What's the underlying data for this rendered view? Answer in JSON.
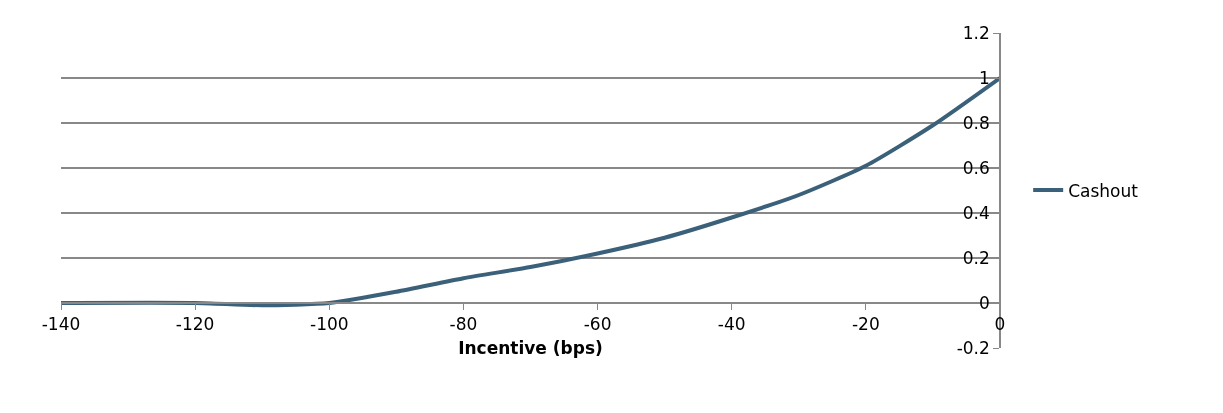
{
  "chart_data": {
    "type": "line",
    "xlabel": "Incentive (bps)",
    "x": [
      -140,
      -120,
      -110,
      -100,
      -90,
      -80,
      -70,
      -60,
      -50,
      -40,
      -30,
      -20,
      -10,
      0
    ],
    "series": [
      {
        "name": "Cashout",
        "color": "#3b6079",
        "values": [
          0,
          0,
          -0.01,
          0,
          0.05,
          0.11,
          0.16,
          0.22,
          0.29,
          0.38,
          0.48,
          0.61,
          0.79,
          1.0
        ]
      }
    ],
    "xlim": [
      -140,
      0
    ],
    "xticks": [
      -140,
      -120,
      -100,
      -80,
      -60,
      -40,
      -20,
      0
    ],
    "ylim": [
      -0.2,
      1.2
    ],
    "yticks": [
      -0.2,
      0,
      0.2,
      0.4,
      0.6,
      0.8,
      1,
      1.2
    ],
    "grid": "y",
    "legend": "right",
    "marker": "none",
    "line_style": "solid"
  }
}
